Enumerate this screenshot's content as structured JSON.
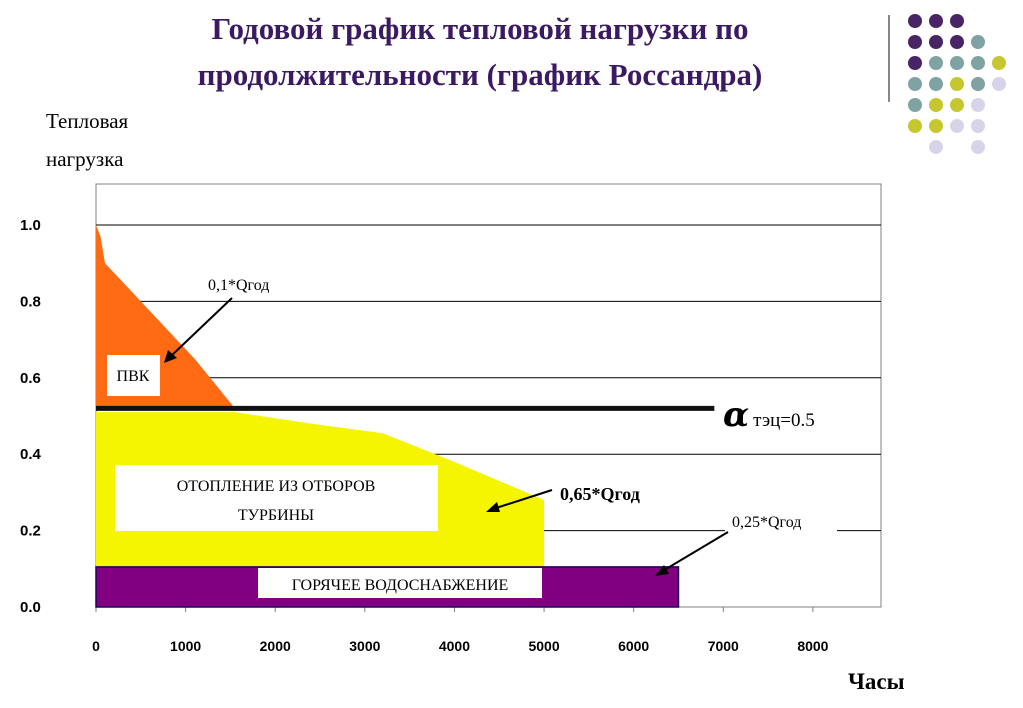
{
  "slide": {
    "title_line1": "Годовой график тепловой нагрузки по",
    "title_line2": "продолжительности (график Россандра)"
  },
  "decor": {
    "dot_colors": {
      "purple": "#4a2565",
      "teal": "#7fa3a2",
      "olive": "#c6c72e",
      "lavender": "#d7d4ea"
    }
  },
  "chart_data": {
    "type": "area",
    "ylabel_line1": "Тепловая",
    "ylabel_line2": "нагрузка",
    "xlabel": "Часы",
    "xlim": [
      0,
      8760
    ],
    "ylim": [
      0,
      1.0
    ],
    "x_ticks": [
      "0",
      "1000",
      "2000",
      "3000",
      "4000",
      "5000",
      "6000",
      "7000",
      "8000"
    ],
    "y_ticks": [
      "0.0",
      "0.2",
      "0.4",
      "0.6",
      "0.8",
      "1.0"
    ],
    "grid": true,
    "series": [
      {
        "name": "ПВК",
        "color": "#ff6a13",
        "points": [
          [
            0,
            1.0
          ],
          [
            50,
            0.97
          ],
          [
            100,
            0.9
          ],
          [
            300,
            0.85
          ],
          [
            700,
            0.75
          ],
          [
            1100,
            0.65
          ],
          [
            1550,
            0.52
          ]
        ]
      },
      {
        "name": "ОТОПЛЕНИЕ ИЗ ОТБОРОВ ТУРБИНЫ",
        "color": "#f5f500",
        "points": [
          [
            0,
            0.51
          ],
          [
            1550,
            0.51
          ],
          [
            2400,
            0.48
          ],
          [
            3200,
            0.455
          ],
          [
            4000,
            0.38
          ],
          [
            5000,
            0.28
          ],
          [
            5000,
            0.105
          ]
        ]
      },
      {
        "name": "ГОРЯЧЕЕ ВОДОСНАБЖЕНИЕ",
        "color": "#800080",
        "points": [
          [
            0,
            0.105
          ],
          [
            6500,
            0.105
          ]
        ]
      }
    ],
    "alpha_line": {
      "value": 0.52,
      "x_end": 6900,
      "label_symbol": "α",
      "label_text": "тэц=0.5"
    },
    "annotations": {
      "boiler_label": "ПВК",
      "heating_label_line1": "ОТОПЛЕНИЕ ИЗ ОТБОРОВ",
      "heating_label_line2": "ТУРБИНЫ",
      "hot_water_label": "ГОРЯЧЕЕ ВОДОСНАБЖЕНИЕ",
      "q01": "0,1*Qгод",
      "q065": "0,65*Qгод",
      "q025": "0,25*Qгод"
    }
  }
}
